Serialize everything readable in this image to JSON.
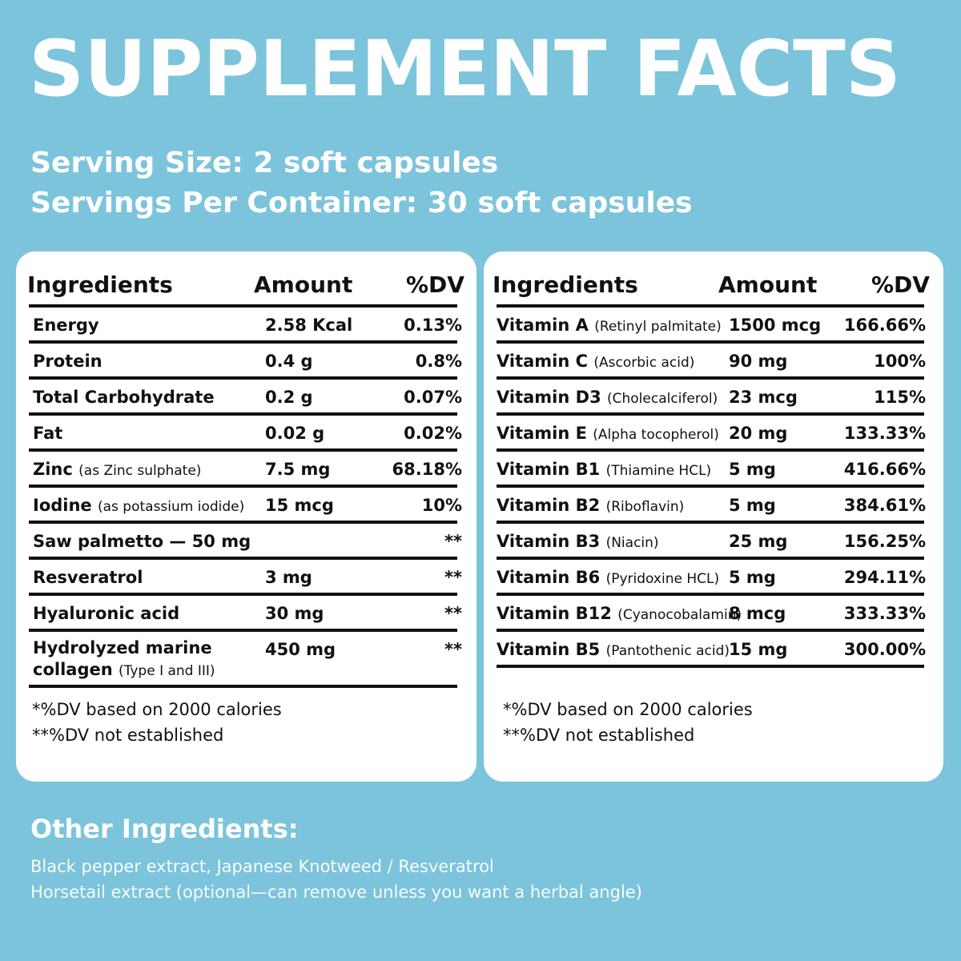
{
  "title": "SUPPLEMENT FACTS",
  "serving_size": "Serving Size: 2 soft capsules",
  "servings_per_container": "Servings Per Container: 30 soft capsules",
  "left_table": {
    "headers": {
      "ingredients": "Ingredients",
      "amount": "Amount",
      "dv": "%DV"
    },
    "rows": [
      {
        "name": "Energy",
        "note": "",
        "amount": "2.58 Kcal",
        "dv": "0.13%"
      },
      {
        "name": "Protein",
        "note": "",
        "amount": "0.4 g",
        "dv": "0.8%"
      },
      {
        "name": "Total Carbohydrate",
        "note": "",
        "amount": "0.2 g",
        "dv": "0.07%"
      },
      {
        "name": "Fat",
        "note": "",
        "amount": "0.02 g",
        "dv": "0.02%"
      },
      {
        "name": "Zinc",
        "note": "(as Zinc sulphate)",
        "amount": "7.5 mg",
        "dv": "68.18%"
      },
      {
        "name": "Iodine",
        "note": "(as potassium iodide)",
        "amount": "15 mcg",
        "dv": "10%"
      },
      {
        "name": "Saw palmetto — 50 mg",
        "note": "",
        "amount": "",
        "dv": "**"
      },
      {
        "name": "Resveratrol",
        "note": "",
        "amount": "3 mg",
        "dv": "**"
      },
      {
        "name": "Hyaluronic acid",
        "note": "",
        "amount": "30 mg",
        "dv": "**"
      },
      {
        "name": "Hydrolyzed marine collagen",
        "note": "(Type I and III)",
        "amount": "450 mg",
        "dv": "**"
      }
    ],
    "footnote1": "*%DV based on 2000 calories",
    "footnote2": "**%DV not established"
  },
  "right_table": {
    "headers": {
      "ingredients": "Ingredients",
      "amount": "Amount",
      "dv": "%DV"
    },
    "rows": [
      {
        "name": "Vitamin A",
        "note": "(Retinyl palmitate)",
        "amount": "1500 mcg",
        "dv": "166.66%"
      },
      {
        "name": "Vitamin C",
        "note": "(Ascorbic acid)",
        "amount": "90 mg",
        "dv": "100%"
      },
      {
        "name": "Vitamin D3",
        "note": "(Cholecalciferol)",
        "amount": "23 mcg",
        "dv": "115%"
      },
      {
        "name": "Vitamin E",
        "note": "(Alpha tocopherol)",
        "amount": "20 mg",
        "dv": "133.33%"
      },
      {
        "name": "Vitamin B1",
        "note": "(Thiamine HCL)",
        "amount": "5 mg",
        "dv": "416.66%"
      },
      {
        "name": "Vitamin B2",
        "note": "(Riboflavin)",
        "amount": "5 mg",
        "dv": "384.61%"
      },
      {
        "name": "Vitamin B3",
        "note": "(Niacin)",
        "amount": "25 mg",
        "dv": "156.25%"
      },
      {
        "name": "Vitamin B6",
        "note": "(Pyridoxine HCL)",
        "amount": "5 mg",
        "dv": "294.11%"
      },
      {
        "name": "Vitamin B12",
        "note": "(Cyanocobalamin)",
        "amount": "8 mcg",
        "dv": "333.33%"
      },
      {
        "name": "Vitamin B5",
        "note": "(Pantothenic acid)",
        "amount": "15 mg",
        "dv": "300.00%"
      }
    ],
    "footnote1": "*%DV based on 2000 calories",
    "footnote2": "**%DV not established"
  },
  "other_ingredients": {
    "title": "Other Ingredients:",
    "line1": "Black pepper extract, Japanese Knotweed / Resveratrol",
    "line2": "Horsetail extract (optional—can remove unless you want a herbal angle)"
  }
}
